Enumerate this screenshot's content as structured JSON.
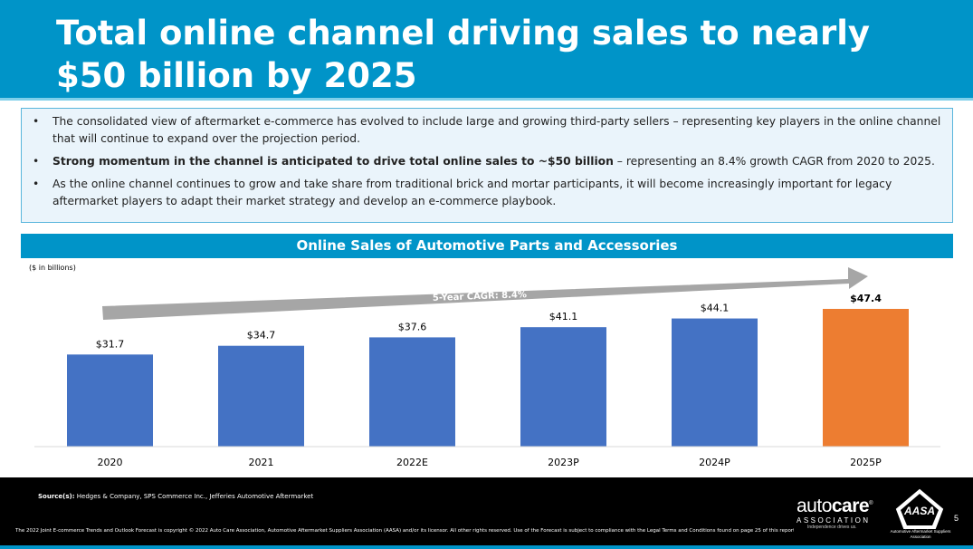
{
  "header": {
    "title": "Total online channel driving sales to nearly $50 billion by 2025"
  },
  "bullets": {
    "b1": "The consolidated view of aftermarket e-commerce has evolved to include large and growing third-party sellers – representing key players in the online channel that will continue to expand over the projection period.",
    "b2_bold": "Strong momentum in the channel is anticipated to drive total online sales to ~$50 billion",
    "b2_rest": " – representing an 8.4% growth CAGR from 2020 to 2025.",
    "b3": "As the online channel continues to grow and take share from traditional brick and mortar participants, it will become increasingly important for legacy aftermarket players to adapt their market strategy and develop an e-commerce playbook."
  },
  "chart_title": "Online Sales of Automotive Parts and Accessories",
  "units_label": "($ in billions)",
  "chart_data": {
    "type": "bar",
    "title": "Online Sales of Automotive Parts and Accessories",
    "ylabel": "($ in billions)",
    "categories": [
      "2020",
      "2021",
      "2022E",
      "2023P",
      "2024P",
      "2025P"
    ],
    "values": [
      31.7,
      34.7,
      37.6,
      41.1,
      44.1,
      47.4
    ],
    "labels": [
      "$31.7",
      "$34.7",
      "$37.6",
      "$41.1",
      "$44.1",
      "$47.4"
    ],
    "bar_colors": [
      "#4472c4",
      "#4472c4",
      "#4472c4",
      "#4472c4",
      "#4472c4",
      "#ed7d31"
    ],
    "ylim": [
      0,
      53
    ],
    "grid": false,
    "annotation": "5-Year CAGR: 8.4%"
  },
  "footer": {
    "source_label": "Source(s):",
    "source_text": " Hedges & Company, SPS Commerce Inc., Jefferies Automotive Aftermarket",
    "copyright": "The 2022 Joint E-commerce Trends and Outlook Forecast is copyright © 2022 Auto Care Association, Automotive Aftermarket Suppliers Association (AASA) and/or its licensor. All other rights reserved. Use of the Forecast is subject to compliance with the Legal Terms and Conditions found on page 25 of this report.",
    "page_number": "5"
  },
  "logos": {
    "autocare_light": "auto",
    "autocare_bold": "care",
    "autocare_reg": "®",
    "autocare_assoc": "ASSOCIATION",
    "autocare_tag": "Independence drives us.",
    "aasa_text": "AASA",
    "aasa_sub": "Automotive Aftermarket Suppliers Association"
  }
}
